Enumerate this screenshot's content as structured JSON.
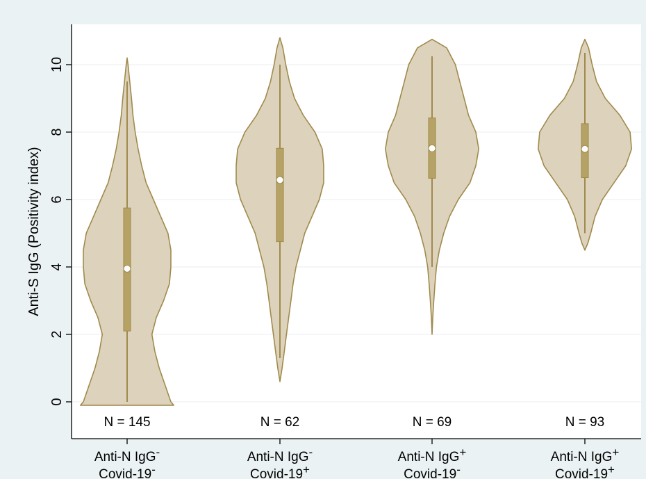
{
  "chart_data": {
    "type": "violin",
    "ylabel": "Anti-S IgG (Positivity index)",
    "ylim": [
      -1.0,
      11.1
    ],
    "yticks": [
      0,
      2,
      4,
      6,
      8,
      10
    ],
    "grid": true,
    "colors": {
      "fill": "#ddd3bd",
      "outline": "#a08a4c",
      "box": "#b5a264",
      "median": "#ffffff",
      "plot_bg": "#ffffff",
      "page_bg": "#eaf2f3"
    },
    "groups": [
      {
        "label_line1": "Anti-N IgG",
        "sup1": "-",
        "label_line2": "Covid-19",
        "sup2": "-",
        "n_label": "N = 145",
        "median": 3.95,
        "q1": 2.1,
        "q3": 5.75,
        "whisker_low": 0.0,
        "whisker_high": 9.5,
        "density": [
          [
            -0.1,
            0.32
          ],
          [
            0,
            0.3
          ],
          [
            0.5,
            0.26
          ],
          [
            1,
            0.22
          ],
          [
            1.5,
            0.19
          ],
          [
            2,
            0.17
          ],
          [
            2.5,
            0.2
          ],
          [
            3,
            0.25
          ],
          [
            3.5,
            0.29
          ],
          [
            4,
            0.3
          ],
          [
            4.5,
            0.3
          ],
          [
            5,
            0.28
          ],
          [
            5.5,
            0.23
          ],
          [
            6,
            0.18
          ],
          [
            6.5,
            0.13
          ],
          [
            7,
            0.1
          ],
          [
            7.5,
            0.075
          ],
          [
            8,
            0.055
          ],
          [
            8.5,
            0.04
          ],
          [
            9,
            0.03
          ],
          [
            9.5,
            0.018
          ],
          [
            10,
            0.006
          ],
          [
            10.2,
            0
          ]
        ]
      },
      {
        "label_line1": "Anti-N IgG",
        "sup1": "-",
        "label_line2": "Covid-19",
        "sup2": "+",
        "n_label": "N = 62",
        "median": 6.58,
        "q1": 4.75,
        "q3": 7.52,
        "whisker_low": 1.3,
        "whisker_high": 10.0,
        "density": [
          [
            0.6,
            0
          ],
          [
            1,
            0.015
          ],
          [
            1.5,
            0.03
          ],
          [
            2,
            0.045
          ],
          [
            2.5,
            0.06
          ],
          [
            3,
            0.075
          ],
          [
            3.5,
            0.09
          ],
          [
            4,
            0.11
          ],
          [
            4.5,
            0.14
          ],
          [
            5,
            0.17
          ],
          [
            5.5,
            0.22
          ],
          [
            6,
            0.27
          ],
          [
            6.5,
            0.3
          ],
          [
            7,
            0.3
          ],
          [
            7.5,
            0.29
          ],
          [
            8,
            0.24
          ],
          [
            8.5,
            0.16
          ],
          [
            9,
            0.1
          ],
          [
            9.5,
            0.065
          ],
          [
            10,
            0.04
          ],
          [
            10.5,
            0.02
          ],
          [
            10.8,
            0
          ]
        ]
      },
      {
        "label_line1": "Anti-N IgG",
        "sup1": "+",
        "label_line2": "Covid-19",
        "sup2": "-",
        "n_label": "N = 69",
        "median": 7.52,
        "q1": 6.63,
        "q3": 8.42,
        "whisker_low": 4.0,
        "whisker_high": 10.25,
        "density": [
          [
            2.0,
            0
          ],
          [
            2.5,
            0.005
          ],
          [
            3,
            0.012
          ],
          [
            3.5,
            0.02
          ],
          [
            4,
            0.03
          ],
          [
            4.5,
            0.05
          ],
          [
            5,
            0.08
          ],
          [
            5.5,
            0.12
          ],
          [
            6,
            0.18
          ],
          [
            6.5,
            0.26
          ],
          [
            7,
            0.3
          ],
          [
            7.5,
            0.32
          ],
          [
            8,
            0.3
          ],
          [
            8.5,
            0.25
          ],
          [
            9,
            0.22
          ],
          [
            9.5,
            0.19
          ],
          [
            10,
            0.16
          ],
          [
            10.5,
            0.1
          ],
          [
            10.75,
            0
          ]
        ]
      },
      {
        "label_line1": "Anti-N IgG",
        "sup1": "+",
        "label_line2": "Covid-19",
        "sup2": "+",
        "n_label": "N = 93",
        "median": 7.5,
        "q1": 6.65,
        "q3": 8.25,
        "whisker_low": 5.0,
        "whisker_high": 10.35,
        "density": [
          [
            4.5,
            0
          ],
          [
            4.7,
            0.02
          ],
          [
            5,
            0.04
          ],
          [
            5.5,
            0.07
          ],
          [
            6,
            0.12
          ],
          [
            6.5,
            0.2
          ],
          [
            7,
            0.28
          ],
          [
            7.5,
            0.32
          ],
          [
            8,
            0.31
          ],
          [
            8.5,
            0.24
          ],
          [
            9,
            0.14
          ],
          [
            9.5,
            0.08
          ],
          [
            10,
            0.05
          ],
          [
            10.5,
            0.025
          ],
          [
            10.75,
            0
          ]
        ]
      }
    ]
  }
}
